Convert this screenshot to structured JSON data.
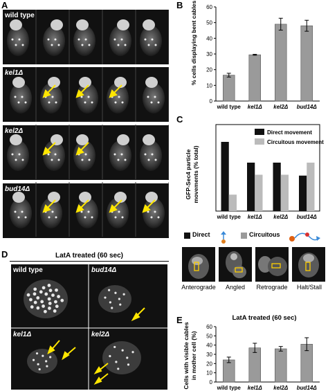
{
  "panels": {
    "A": {
      "label": "A",
      "rows": [
        {
          "genotype": "wild  type",
          "arrows": 0
        },
        {
          "genotype": "kel1Δ",
          "arrows": 3
        },
        {
          "genotype": "kel2Δ",
          "arrows": 2
        },
        {
          "genotype": "bud14Δ",
          "arrows": 4
        }
      ]
    },
    "B": {
      "label": "B",
      "chart_data": {
        "type": "bar",
        "ylabel": "% cells displaying bent cables",
        "categories": [
          "wild type",
          "kel1Δ",
          "kel2Δ",
          "bud14Δ"
        ],
        "values": [
          16.5,
          29.5,
          49,
          48
        ],
        "errors": [
          1.2,
          0.3,
          3.8,
          3.5
        ],
        "ylim": [
          0,
          60
        ],
        "yticks": [
          0,
          10,
          20,
          30,
          40,
          50,
          60
        ],
        "bar_color": "#9a9a9a"
      }
    },
    "C": {
      "label": "C",
      "chart_data": {
        "type": "bar",
        "ylabel_lines": [
          "GFP-Sec4 particle",
          "movements (% total)"
        ],
        "categories": [
          "wild type",
          "kel1Δ",
          "kel2Δ",
          "bud14Δ"
        ],
        "series": [
          {
            "name": "Direct movement",
            "values": [
              80,
              56,
              56,
              41
            ],
            "color": "#111111"
          },
          {
            "name": "Circuitous movement",
            "values": [
              19,
              42,
              42,
              56
            ],
            "color": "#bbbbbb"
          }
        ],
        "ylim": [
          0,
          100
        ],
        "legend": "top-right"
      },
      "schematic": {
        "direct_label": "Direct",
        "circuitous_label": "Circuitous",
        "examples": [
          "Anterograde",
          "Angled",
          "Retrograde",
          "Halt/Stall"
        ]
      }
    },
    "D": {
      "label": "D",
      "title": "LatA treated (60 sec)",
      "cells": [
        "wild  type",
        "bud14Δ",
        "kel1Δ",
        "kel2Δ"
      ]
    },
    "E": {
      "label": "E",
      "chart_data": {
        "type": "bar",
        "title": "LatA treated (60 sec)",
        "ylabel_lines": [
          "Cells with visible cables",
          "in mother cell (%)"
        ],
        "categories": [
          "wild type",
          "kel1Δ",
          "kel2Δ",
          "bud14Δ"
        ],
        "values": [
          24,
          37,
          36,
          41
        ],
        "errors": [
          3,
          5,
          2.5,
          7
        ],
        "ylim": [
          0,
          60
        ],
        "yticks": [
          0,
          10,
          20,
          30,
          40,
          50,
          60
        ],
        "bar_color": "#9a9a9a"
      }
    }
  }
}
